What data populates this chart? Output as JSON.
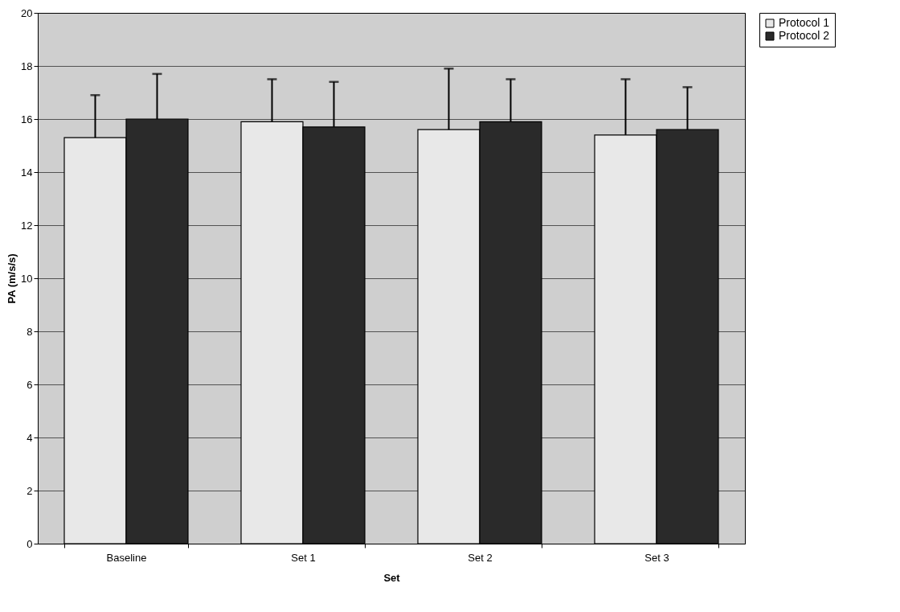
{
  "chart_data": {
    "type": "bar",
    "xlabel": "Set",
    "ylabel": "PA (m/s/s)",
    "categories": [
      "Baseline",
      "Set 1",
      "Set 2",
      "Set 3"
    ],
    "series": [
      {
        "name": "Protocol 1",
        "color": "#e8e8e8",
        "values": [
          15.3,
          15.9,
          15.6,
          15.4
        ],
        "errors": [
          [
            15.3,
            16.9
          ],
          [
            15.9,
            17.5
          ],
          [
            15.6,
            17.9
          ],
          [
            15.4,
            17.5
          ]
        ]
      },
      {
        "name": "Protocol 2",
        "color": "#2a2a2a",
        "values": [
          16.0,
          15.7,
          15.9,
          15.6
        ],
        "errors": [
          [
            16.0,
            17.7
          ],
          [
            15.7,
            17.4
          ],
          [
            15.9,
            17.5
          ],
          [
            15.6,
            17.2
          ]
        ]
      }
    ],
    "ylim": [
      0,
      20
    ],
    "yticks": [
      0,
      2,
      4,
      6,
      8,
      10,
      12,
      14,
      16,
      18,
      20
    ],
    "grid": "y",
    "legend": "right"
  }
}
